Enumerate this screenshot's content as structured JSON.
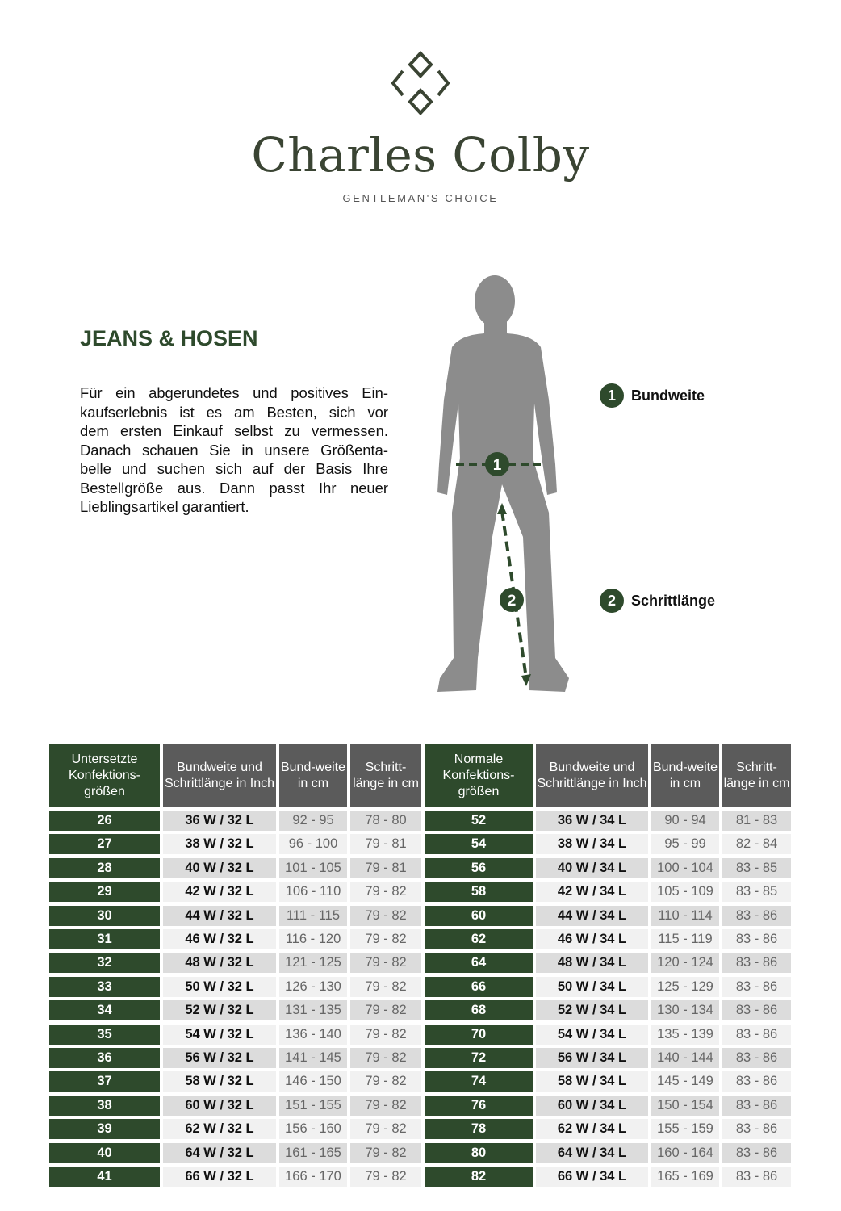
{
  "brand": {
    "name": "Charles Colby",
    "tagline": "GENTLEMAN'S CHOICE",
    "logo_icon": "diamond-monogram-icon",
    "color": "#3a4433"
  },
  "section": {
    "title": "JEANS & HOSEN",
    "intro_lines": [
      "Für ein abgerundetes und positives Ein-",
      "kaufserlebnis ist es am Besten, sich vor",
      "dem ersten Einkauf selbst zu vermessen.",
      "Danach schauen Sie in unsere Größenta-",
      "belle und suchen sich auf der Basis Ihre",
      "Bestellgröße aus. Dann passt Ihr neuer",
      "Lieblingsartikel garantiert."
    ]
  },
  "measurements": [
    {
      "number": "1",
      "label": "Bundweite"
    },
    {
      "number": "2",
      "label": "Schrittlänge"
    }
  ],
  "colors": {
    "accent_green": "#2e4a2c",
    "header_gray": "#5b5b5b",
    "row_dark": "#dcdcdc",
    "row_light": "#f1f1f1"
  },
  "table": {
    "headers": [
      "Untersetzte Konfektions-größen",
      "Bundweite und Schrittlänge in Inch",
      "Bund-weite in cm",
      "Schritt-länge in cm",
      "Normale Konfektions-größen",
      "Bundweite und Schrittlänge in Inch",
      "Bund-weite in cm",
      "Schritt-länge in cm"
    ],
    "rows": [
      [
        "26",
        "36 W / 32 L",
        "92 - 95",
        "78 - 80",
        "52",
        "36 W / 34 L",
        "90 - 94",
        "81 - 83"
      ],
      [
        "27",
        "38 W / 32 L",
        "96 - 100",
        "79 - 81",
        "54",
        "38 W / 34 L",
        "95 - 99",
        "82 - 84"
      ],
      [
        "28",
        "40 W / 32 L",
        "101 - 105",
        "79 - 81",
        "56",
        "40 W / 34 L",
        "100 - 104",
        "83 - 85"
      ],
      [
        "29",
        "42 W / 32 L",
        "106 - 110",
        "79 - 82",
        "58",
        "42 W / 34 L",
        "105 - 109",
        "83 - 85"
      ],
      [
        "30",
        "44 W / 32 L",
        "111 - 115",
        "79 - 82",
        "60",
        "44 W / 34 L",
        "110 - 114",
        "83 - 86"
      ],
      [
        "31",
        "46 W / 32 L",
        "116 - 120",
        "79 - 82",
        "62",
        "46 W / 34 L",
        "115 - 119",
        "83 - 86"
      ],
      [
        "32",
        "48 W / 32 L",
        "121 - 125",
        "79 - 82",
        "64",
        "48 W / 34 L",
        "120 - 124",
        "83 - 86"
      ],
      [
        "33",
        "50 W / 32 L",
        "126 - 130",
        "79 - 82",
        "66",
        "50 W / 34 L",
        "125 - 129",
        "83 - 86"
      ],
      [
        "34",
        "52 W / 32 L",
        "131 - 135",
        "79 - 82",
        "68",
        "52 W / 34 L",
        "130 - 134",
        "83 - 86"
      ],
      [
        "35",
        "54 W / 32 L",
        "136 - 140",
        "79 - 82",
        "70",
        "54 W / 34 L",
        "135 - 139",
        "83 - 86"
      ],
      [
        "36",
        "56 W / 32 L",
        "141 - 145",
        "79 - 82",
        "72",
        "56 W / 34 L",
        "140 - 144",
        "83 - 86"
      ],
      [
        "37",
        "58 W / 32 L",
        "146 - 150",
        "79 - 82",
        "74",
        "58 W / 34 L",
        "145 - 149",
        "83 - 86"
      ],
      [
        "38",
        "60 W / 32 L",
        "151 - 155",
        "79 - 82",
        "76",
        "60 W / 34 L",
        "150 - 154",
        "83 - 86"
      ],
      [
        "39",
        "62 W / 32 L",
        "156 - 160",
        "79 - 82",
        "78",
        "62 W / 34 L",
        "155 - 159",
        "83 - 86"
      ],
      [
        "40",
        "64 W / 32 L",
        "161 - 165",
        "79 - 82",
        "80",
        "64 W / 34 L",
        "160 - 164",
        "83 - 86"
      ],
      [
        "41",
        "66 W / 32 L",
        "166 - 170",
        "79 - 82",
        "82",
        "66 W / 34 L",
        "165 - 169",
        "83 - 86"
      ]
    ]
  }
}
